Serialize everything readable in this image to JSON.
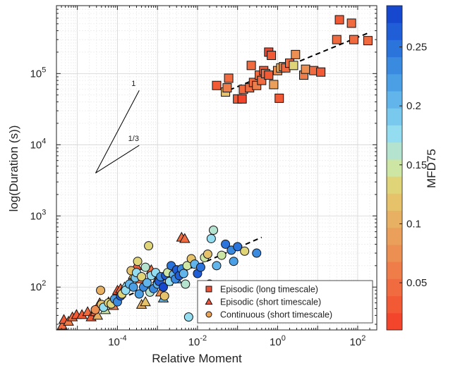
{
  "chart_data": {
    "type": "scatter",
    "xlabel": "Relative Moment",
    "ylabel": "log(Duration (s))",
    "x_scale": "log",
    "y_scale": "log",
    "xlim": [
      3e-06,
      300
    ],
    "ylim": [
      25,
      900000
    ],
    "grid": true,
    "legend_position": "bottom-right",
    "x_ticks": [
      {
        "value": 0.0001,
        "base": "10",
        "exp": "-4"
      },
      {
        "value": 0.01,
        "base": "10",
        "exp": "-2"
      },
      {
        "value": 1,
        "base": "10",
        "exp": "0"
      },
      {
        "value": 100,
        "base": "10",
        "exp": "2"
      }
    ],
    "y_ticks": [
      {
        "value": 100,
        "base": "10",
        "exp": "2"
      },
      {
        "value": 1000,
        "base": "10",
        "exp": "3"
      },
      {
        "value": 10000,
        "base": "10",
        "exp": "4"
      },
      {
        "value": 100000,
        "base": "10",
        "exp": "5"
      }
    ],
    "colorbar": {
      "label": "MFD75",
      "min": 0.01,
      "max": 0.285,
      "ticks": [
        {
          "value": 0.05,
          "label": "0.05"
        },
        {
          "value": 0.1,
          "label": "0.1"
        },
        {
          "value": 0.15,
          "label": "0.15"
        },
        {
          "value": 0.2,
          "label": "0.2"
        },
        {
          "value": 0.25,
          "label": "0.25"
        }
      ],
      "colors": [
        "#f2452c",
        "#f25a36",
        "#f06b40",
        "#ee7d4a",
        "#ec8f52",
        "#ea9f5b",
        "#e8b063",
        "#e6c26b",
        "#e0d479",
        "#cde6a4",
        "#b4e4cf",
        "#94dcf0",
        "#79c9ee",
        "#61b5ea",
        "#4ba0e5",
        "#3a8ae0",
        "#2b74dc",
        "#1f5ed7",
        "#1548cf"
      ]
    },
    "scale_lines": [
      {
        "label": "1",
        "slope": 1
      },
      {
        "label": "1/3",
        "slope": 0.3333
      }
    ],
    "series": [
      {
        "name": "Episodic (long timescale)",
        "marker": "square",
        "points": [
          [
            0.03,
            68000,
            0.03
          ],
          [
            0.05,
            55000,
            0.12
          ],
          [
            0.055,
            63000,
            0.06
          ],
          [
            0.06,
            86000,
            0.05
          ],
          [
            0.1,
            44000,
            0.03
          ],
          [
            0.13,
            44000,
            0.02
          ],
          [
            0.14,
            60000,
            0.04
          ],
          [
            0.2,
            63000,
            0.05
          ],
          [
            0.22,
            130000,
            0.04
          ],
          [
            0.25,
            75000,
            0.04
          ],
          [
            0.3,
            68000,
            0.06
          ],
          [
            0.35,
            95000,
            0.05
          ],
          [
            0.4,
            80000,
            0.04
          ],
          [
            0.45,
            110000,
            0.03
          ],
          [
            0.5,
            100000,
            0.05
          ],
          [
            0.6,
            95000,
            0.03
          ],
          [
            0.6,
            200000,
            0.02
          ],
          [
            0.7,
            180000,
            0.03
          ],
          [
            0.8,
            70000,
            0.09
          ],
          [
            1.0,
            110000,
            0.07
          ],
          [
            1.1,
            45000,
            0.03
          ],
          [
            1.2,
            120000,
            0.1
          ],
          [
            1.4,
            125000,
            0.08
          ],
          [
            1.6,
            120000,
            0.05
          ],
          [
            2.0,
            140000,
            0.05
          ],
          [
            2.5,
            130000,
            0.14
          ],
          [
            2.8,
            185000,
            0.08
          ],
          [
            4.5,
            95000,
            0.06
          ],
          [
            5.0,
            115000,
            0.07
          ],
          [
            8.0,
            110000,
            0.05
          ],
          [
            12,
            105000,
            0.03
          ],
          [
            30,
            300000,
            0.05
          ],
          [
            35,
            570000,
            0.03
          ],
          [
            70,
            510000,
            0.04
          ],
          [
            80,
            300000,
            0.04
          ],
          [
            180,
            290000,
            0.04
          ]
        ]
      },
      {
        "name": "Episodic (short timescale)",
        "marker": "triangle",
        "points": [
          [
            4.2e-06,
            29,
            0.04
          ],
          [
            4.6e-06,
            35,
            0.03
          ],
          [
            6e-06,
            33,
            0.06
          ],
          [
            7.5e-06,
            38,
            0.04
          ],
          [
            9.5e-06,
            41,
            0.03
          ],
          [
            1.3e-05,
            41,
            0.03
          ],
          [
            1.8e-05,
            45,
            0.05
          ],
          [
            2.2e-05,
            38,
            0.03
          ],
          [
            2.8e-05,
            45,
            0.04
          ],
          [
            3.2e-05,
            40,
            0.1
          ],
          [
            3.6e-05,
            60,
            0.03
          ],
          [
            5e-05,
            48,
            0.15
          ],
          [
            6e-05,
            62,
            0.03
          ],
          [
            8e-05,
            55,
            0.06
          ],
          [
            0.0001,
            90,
            0.03
          ],
          [
            0.00012,
            95,
            0.04
          ],
          [
            0.00015,
            100,
            0.18
          ],
          [
            0.0002,
            115,
            0.14
          ],
          [
            0.00025,
            150,
            0.12
          ],
          [
            0.0003,
            200,
            0.03
          ],
          [
            0.00035,
            150,
            0.04
          ],
          [
            0.00038,
            130,
            0.05
          ],
          [
            0.0004,
            57,
            0.1
          ],
          [
            0.0005,
            62,
            0.12
          ],
          [
            0.0007,
            175,
            0.05
          ],
          [
            0.001,
            130,
            0.06
          ],
          [
            0.0012,
            85,
            0.08
          ],
          [
            0.0014,
            70,
            0.2
          ],
          [
            0.0018,
            120,
            0.16
          ],
          [
            0.0022,
            175,
            0.09
          ],
          [
            0.003,
            130,
            0.22
          ],
          [
            0.004,
            500,
            0.05
          ],
          [
            0.0048,
            480,
            0.04
          ]
        ]
      },
      {
        "name": "Continuous (short timescale)",
        "marker": "circle",
        "points": [
          [
            2.8e-05,
            48,
            0.08
          ],
          [
            3.8e-05,
            90,
            0.1
          ],
          [
            4e-05,
            57,
            0.12
          ],
          [
            4.5e-05,
            52,
            0.18
          ],
          [
            6e-05,
            60,
            0.14
          ],
          [
            7e-05,
            58,
            0.13
          ],
          [
            8.5e-05,
            68,
            0.22
          ],
          [
            0.0001,
            62,
            0.24
          ],
          [
            0.00012,
            75,
            0.27
          ],
          [
            0.00013,
            80,
            0.14
          ],
          [
            0.00016,
            90,
            0.17
          ],
          [
            0.0002,
            110,
            0.2
          ],
          [
            0.00022,
            170,
            0.12
          ],
          [
            0.00025,
            100,
            0.22
          ],
          [
            0.00028,
            135,
            0.19
          ],
          [
            0.0003,
            160,
            0.17
          ],
          [
            0.00032,
            230,
            0.13
          ],
          [
            0.00035,
            80,
            0.22
          ],
          [
            0.0004,
            140,
            0.13
          ],
          [
            0.00045,
            100,
            0.24
          ],
          [
            0.0005,
            190,
            0.16
          ],
          [
            0.00055,
            115,
            0.2
          ],
          [
            0.0006,
            380,
            0.13
          ],
          [
            0.00065,
            85,
            0.16
          ],
          [
            0.0007,
            145,
            0.17
          ],
          [
            0.0008,
            95,
            0.23
          ],
          [
            0.0009,
            160,
            0.18
          ],
          [
            0.001,
            110,
            0.2
          ],
          [
            0.0011,
            120,
            0.27
          ],
          [
            0.0012,
            140,
            0.24
          ],
          [
            0.0014,
            100,
            0.28
          ],
          [
            0.0015,
            75,
            0.12
          ],
          [
            0.0016,
            145,
            0.26
          ],
          [
            0.0018,
            160,
            0.15
          ],
          [
            0.002,
            120,
            0.18
          ],
          [
            0.0022,
            200,
            0.25
          ],
          [
            0.0025,
            150,
            0.21
          ],
          [
            0.0028,
            130,
            0.23
          ],
          [
            0.003,
            175,
            0.26
          ],
          [
            0.0035,
            145,
            0.27
          ],
          [
            0.004,
            180,
            0.24
          ],
          [
            0.0045,
            155,
            0.2
          ],
          [
            0.005,
            110,
            0.16
          ],
          [
            0.0055,
            200,
            0.15
          ],
          [
            0.006,
            38,
            0.18
          ],
          [
            0.007,
            250,
            0.12
          ],
          [
            0.0085,
            210,
            0.2
          ],
          [
            0.01,
            155,
            0.26
          ],
          [
            0.012,
            190,
            0.25
          ],
          [
            0.015,
            260,
            0.15
          ],
          [
            0.018,
            290,
            0.12
          ],
          [
            0.02,
            110,
            0.2
          ],
          [
            0.022,
            480,
            0.18
          ],
          [
            0.025,
            630,
            0.16
          ],
          [
            0.03,
            200,
            0.2
          ],
          [
            0.04,
            280,
            0.15
          ],
          [
            0.05,
            400,
            0.25
          ],
          [
            0.07,
            330,
            0.24
          ],
          [
            0.08,
            230,
            0.22
          ],
          [
            0.1,
            370,
            0.25
          ],
          [
            0.15,
            320,
            0.14
          ],
          [
            0.3,
            300,
            0.24
          ]
        ]
      }
    ],
    "fit_lines": [
      {
        "series": "Episodic (long timescale)",
        "from": [
          0.04,
          53000
        ],
        "to": [
          180,
          370000
        ]
      },
      {
        "series": "Continuous (short timescale)",
        "from": [
          8e-05,
          62
        ],
        "to": [
          0.4,
          500
        ]
      }
    ]
  }
}
